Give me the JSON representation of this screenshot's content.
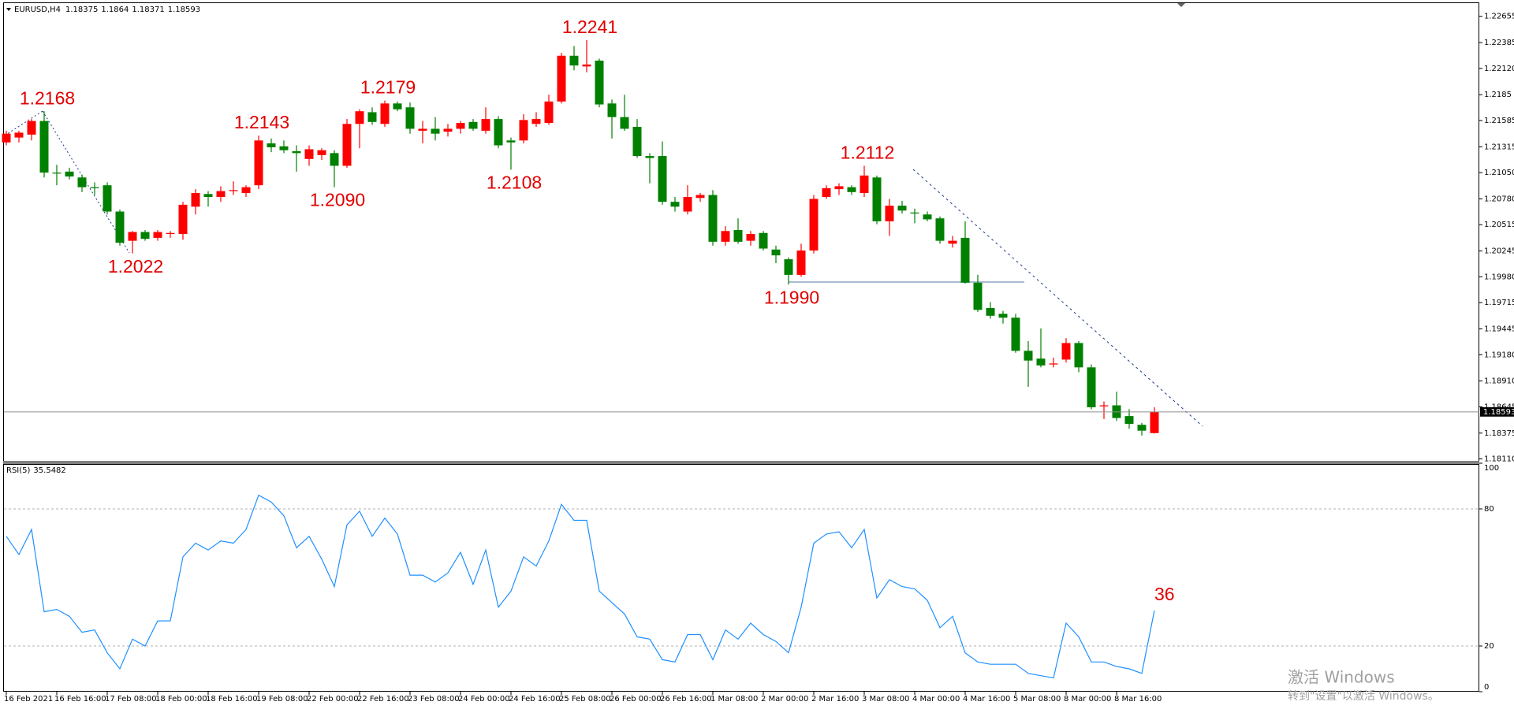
{
  "chart_data": [
    {
      "type": "candlestick",
      "title": "EURUSD,H4",
      "up_color": "#ff0000",
      "down_color": "#008000",
      "categories": [
        "16 Feb 2021",
        null,
        null,
        null,
        "16 Feb 16:00",
        null,
        null,
        null,
        "17 Feb 08:00",
        null,
        null,
        null,
        "18 Feb 00:00",
        null,
        null,
        null,
        "18 Feb 16:00",
        null,
        null,
        null,
        "19 Feb 08:00",
        null,
        null,
        null,
        "22 Feb 00:00",
        null,
        null,
        null,
        "22 Feb 16:00",
        null,
        null,
        null,
        "23 Feb 08:00",
        null,
        null,
        null,
        "24 Feb 00:00",
        null,
        null,
        null,
        "24 Feb 16:00",
        null,
        null,
        null,
        "25 Feb 08:00",
        null,
        null,
        null,
        "26 Feb 00:00",
        null,
        null,
        null,
        "26 Feb 16:00",
        null,
        null,
        null,
        "1 Mar 08:00",
        null,
        null,
        null,
        "2 Mar 00:00",
        null,
        null,
        null,
        "2 Mar 16:00",
        null,
        null,
        null,
        "3 Mar 08:00",
        null,
        null,
        null,
        "4 Mar 00:00",
        null,
        null,
        null,
        "4 Mar 16:00",
        null,
        null,
        null,
        "5 Mar 08:00",
        null,
        null,
        null,
        "8 Mar 00:00",
        null,
        null,
        null,
        "8 Mar 16:00",
        null,
        null,
        null
      ],
      "open": [
        1.2136,
        1.2141,
        1.2144,
        1.2158,
        1.2105,
        1.2106,
        1.21,
        1.209,
        1.2092,
        1.2065,
        1.2035,
        1.2044,
        1.2038,
        1.2042,
        1.2042,
        1.207,
        1.2083,
        1.208,
        1.2086,
        1.2084,
        1.2092,
        1.2135,
        1.2132,
        1.2127,
        1.2119,
        1.2123,
        1.2125,
        1.2112,
        1.2155,
        1.2167,
        1.2155,
        1.2176,
        1.2172,
        1.2148,
        1.215,
        1.2147,
        1.215,
        1.2157,
        1.2148,
        1.216,
        1.2138,
        1.2138,
        1.2155,
        1.2156,
        1.2178,
        1.2225,
        1.2214,
        1.222,
        1.2176,
        1.2162,
        1.2152,
        1.2122,
        1.2122,
        1.2075,
        1.2065,
        1.2079,
        1.2082,
        1.2034,
        1.2046,
        1.2035,
        1.2043,
        1.2026,
        1.2016,
        1.2,
        1.2025,
        1.208,
        1.2088,
        1.209,
        1.2084,
        1.21,
        1.2055,
        1.2071,
        1.2064,
        1.2062,
        1.2058,
        1.2032,
        1.2038,
        1.1992,
        1.1966,
        1.196,
        1.1956,
        1.1922,
        1.1914,
        1.1908,
        1.1913,
        1.193,
        1.1905,
        1.1865,
        1.1866,
        1.1855,
        1.1846,
        1.18375
      ],
      "high": [
        1.2148,
        1.2148,
        1.216,
        1.2168,
        1.2113,
        1.211,
        1.2103,
        1.2095,
        1.2095,
        1.2067,
        1.2045,
        1.2046,
        1.2046,
        1.2045,
        1.2075,
        1.2088,
        1.2086,
        1.2091,
        1.2096,
        1.2092,
        1.2143,
        1.214,
        1.2138,
        1.2133,
        1.2133,
        1.213,
        1.2128,
        1.216,
        1.217,
        1.2172,
        1.2179,
        1.2178,
        1.2177,
        1.2158,
        1.2162,
        1.2155,
        1.2158,
        1.216,
        1.2172,
        1.2163,
        1.2141,
        1.2165,
        1.2167,
        1.2185,
        1.2228,
        1.2235,
        1.2241,
        1.2222,
        1.218,
        1.2185,
        1.216,
        1.2125,
        1.2137,
        1.208,
        1.2092,
        1.2084,
        1.2087,
        1.205,
        1.2058,
        1.2045,
        1.2045,
        1.203,
        1.2018,
        1.2032,
        1.2082,
        1.2092,
        1.2094,
        1.2092,
        1.2112,
        1.2102,
        1.2078,
        1.2076,
        1.2068,
        1.2065,
        1.206,
        1.204,
        1.2055,
        1.2,
        1.1972,
        1.1963,
        1.196,
        1.1932,
        1.1945,
        1.1915,
        1.1935,
        1.1932,
        1.1908,
        1.187,
        1.188,
        1.1862,
        1.1848,
        1.1864
      ],
      "low": [
        1.2133,
        1.2136,
        1.2138,
        1.21,
        1.2092,
        1.2098,
        1.2085,
        1.2082,
        1.2062,
        1.203,
        1.2022,
        1.2035,
        1.2035,
        1.2038,
        1.2036,
        1.2062,
        1.207,
        1.2075,
        1.2082,
        1.208,
        1.2088,
        1.2126,
        1.2125,
        1.2106,
        1.2112,
        1.2118,
        1.209,
        1.211,
        1.213,
        1.2154,
        1.2152,
        1.2168,
        1.2145,
        1.2135,
        1.2138,
        1.2142,
        1.2145,
        1.2148,
        1.2145,
        1.213,
        1.2108,
        1.2135,
        1.2152,
        1.2154,
        1.2176,
        1.221,
        1.2208,
        1.2172,
        1.214,
        1.2148,
        1.212,
        1.2094,
        1.2072,
        1.2065,
        1.2062,
        1.2075,
        1.203,
        1.203,
        1.2032,
        1.203,
        1.2025,
        1.2012,
        1.199,
        1.1998,
        1.2022,
        1.2078,
        1.2082,
        1.2082,
        1.208,
        1.2052,
        1.204,
        1.2063,
        1.2053,
        1.2055,
        1.2032,
        1.2028,
        1.1991,
        1.1962,
        1.1955,
        1.195,
        1.192,
        1.1885,
        1.1905,
        1.1905,
        1.191,
        1.19,
        1.1862,
        1.1852,
        1.185,
        1.1842,
        1.1835,
        1.18371
      ],
      "close": [
        1.2145,
        1.2146,
        1.2158,
        1.2105,
        1.2104,
        1.2101,
        1.209,
        1.2089,
        1.2065,
        1.2033,
        1.2044,
        1.2037,
        1.2044,
        1.2043,
        1.2072,
        1.2084,
        1.208,
        1.2086,
        1.2087,
        1.209,
        1.2138,
        1.2131,
        1.2128,
        1.2125,
        1.2129,
        1.2128,
        1.2112,
        1.2155,
        1.2168,
        1.2157,
        1.2176,
        1.217,
        1.215,
        1.215,
        1.2145,
        1.215,
        1.2156,
        1.215,
        1.216,
        1.2133,
        1.2136,
        1.2159,
        1.216,
        1.2178,
        1.2225,
        1.2215,
        1.2216,
        1.2175,
        1.2162,
        1.215,
        1.2122,
        1.212,
        1.2075,
        1.207,
        1.208,
        1.2082,
        1.2034,
        1.2045,
        1.2034,
        1.2042,
        1.2027,
        1.202,
        1.2,
        1.2025,
        1.2078,
        1.2089,
        1.2091,
        1.2085,
        1.2102,
        1.2055,
        1.2071,
        1.2066,
        1.2063,
        1.2057,
        1.2035,
        1.2035,
        1.1992,
        1.1964,
        1.1958,
        1.1956,
        1.1922,
        1.1912,
        1.1907,
        1.1909,
        1.193,
        1.1905,
        1.1864,
        1.1866,
        1.1853,
        1.1847,
        1.184,
        1.18593
      ],
      "ylim": [
        1.1809,
        1.2279
      ],
      "yticks": [
        1.22655,
        1.22385,
        {
          "value": 1.2212,
          "label": "1.22120"
        },
        1.2185,
        1.21585,
        1.21315,
        {
          "value": 1.2105,
          "label": "1.21050"
        },
        {
          "value": 1.2078,
          "label": "1.20780"
        },
        1.20515,
        1.20245,
        {
          "value": 1.1998,
          "label": "1.19980"
        },
        1.19715,
        1.19445,
        {
          "value": 1.1918,
          "label": "1.19180"
        },
        {
          "value": 1.1891,
          "label": "1.18910"
        },
        1.18645,
        1.18375,
        {
          "value": 1.1811,
          "label": "1.18110"
        }
      ],
      "annotations": [
        {
          "value": 1.2168,
          "label": "1.2168"
        },
        {
          "value": 1.2022,
          "label": "1.2022"
        },
        {
          "value": 1.2143,
          "label": "1.2143"
        },
        {
          "value": 1.209,
          "label": "1.2090"
        },
        {
          "value": 1.2179,
          "label": "1.2179"
        },
        {
          "value": 1.2108,
          "label": "1.2108"
        },
        {
          "value": 1.2241,
          "label": "1.2241"
        },
        {
          "value": 1.2112,
          "label": "1.2112"
        },
        {
          "value": 1.199,
          "label": "1.1990"
        }
      ],
      "annotation_color": "#e00000"
    },
    {
      "type": "line",
      "title": "RSI(5)",
      "color": "#1e90ff",
      "values": [
        68,
        60,
        71,
        35,
        36,
        33,
        26,
        27,
        17,
        10,
        23,
        20,
        31,
        31,
        59,
        65,
        62,
        66,
        65,
        71,
        86,
        83,
        77,
        63,
        68,
        58,
        46,
        73,
        79,
        68,
        76,
        69,
        51,
        51,
        48,
        52,
        61,
        47,
        62,
        37,
        44,
        59,
        55,
        66,
        82,
        75,
        75,
        44,
        39,
        34,
        24,
        23,
        14,
        13,
        25,
        25,
        14,
        27,
        23,
        30,
        25,
        22,
        17,
        37,
        65,
        69,
        70,
        63,
        71,
        41,
        49,
        46,
        45,
        40,
        28,
        33,
        17,
        13,
        12,
        12,
        12,
        8,
        7,
        6,
        30,
        24,
        13,
        13,
        11,
        10,
        8,
        35.5482
      ],
      "ylim": [
        0,
        100
      ],
      "yticks": [
        0,
        20,
        80,
        100
      ],
      "grid": true,
      "annotation": "36"
    }
  ],
  "watermark": {
    "line1": "激活 Windows",
    "line2": "转到\"设置\"以激活 Windows。"
  }
}
